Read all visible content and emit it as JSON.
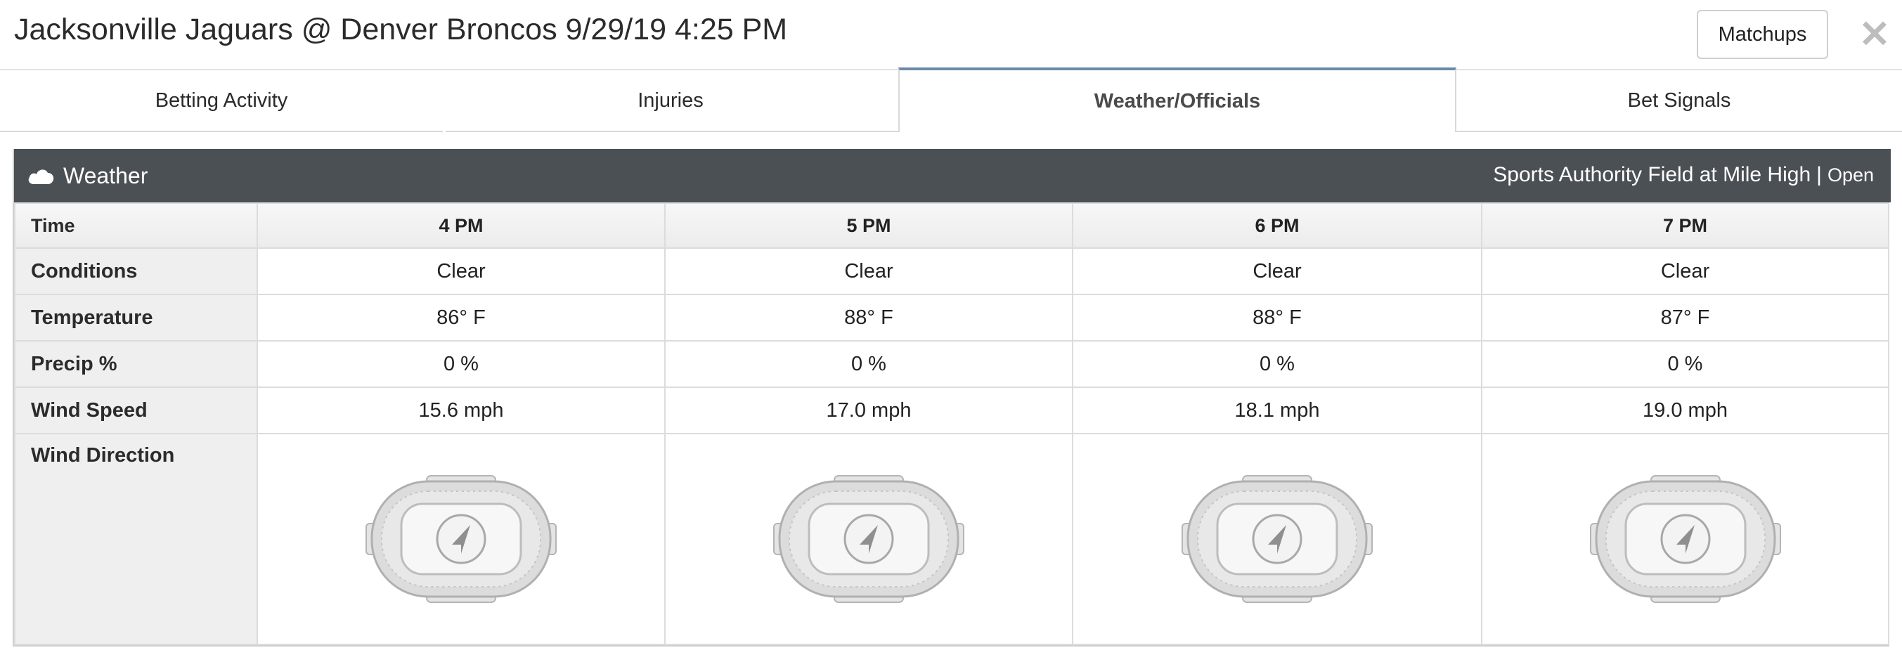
{
  "header": {
    "title": "Jacksonville Jaguars @ Denver Broncos 9/29/19 4:25 PM",
    "matchups_label": "Matchups",
    "close_glyph": "✕"
  },
  "tabs": [
    {
      "label": "Betting Activity"
    },
    {
      "label": "Injuries"
    },
    {
      "label": "Weather/Officials",
      "active": true
    },
    {
      "label": "Bet Signals"
    }
  ],
  "weather": {
    "title": "Weather",
    "icon": "cloud-icon",
    "venue": "Sports Authority Field at Mile High",
    "separator": "|",
    "roof": "Open",
    "row_labels": {
      "time": "Time",
      "conditions": "Conditions",
      "temperature": "Temperature",
      "precip": "Precip %",
      "wind_speed": "Wind Speed",
      "wind_direction": "Wind Direction"
    },
    "hours": [
      {
        "time": "4 PM",
        "conditions": "Clear",
        "temperature": "86° F",
        "precip": "0 %",
        "wind_speed": "15.6 mph",
        "wind_icon": "stadium-wind-arrow-icon"
      },
      {
        "time": "5 PM",
        "conditions": "Clear",
        "temperature": "88° F",
        "precip": "0 %",
        "wind_speed": "17.0 mph",
        "wind_icon": "stadium-wind-arrow-icon"
      },
      {
        "time": "6 PM",
        "conditions": "Clear",
        "temperature": "88° F",
        "precip": "0 %",
        "wind_speed": "18.1 mph",
        "wind_icon": "stadium-wind-arrow-icon"
      },
      {
        "time": "7 PM",
        "conditions": "Clear",
        "temperature": "87° F",
        "precip": "0 %",
        "wind_speed": "19.0 mph",
        "wind_icon": "stadium-wind-arrow-icon"
      }
    ]
  },
  "colors": {
    "panel_header": "#4b5055",
    "active_tab_accent": "#6a8aa8",
    "label_cell": "#efefef"
  }
}
